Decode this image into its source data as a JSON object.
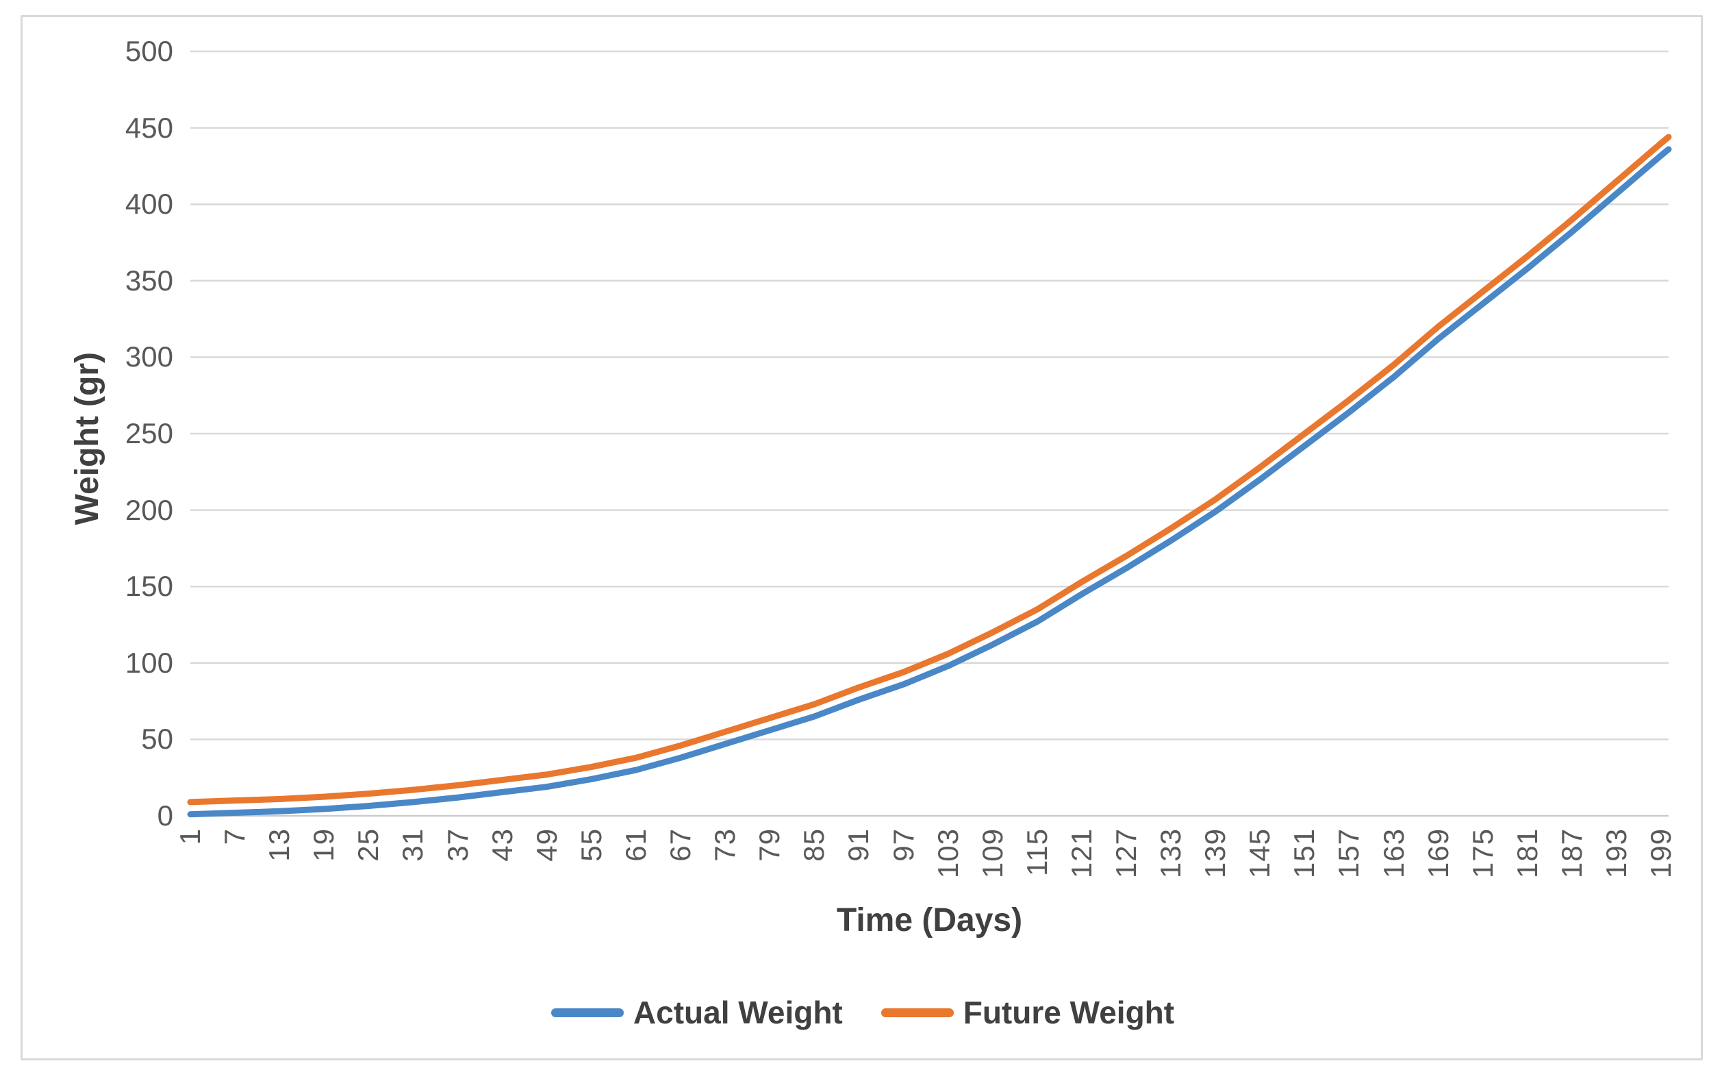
{
  "chart_data": {
    "type": "line",
    "xlabel": "Time (Days)",
    "ylabel": "Weight (gr)",
    "xlim": [
      1,
      200
    ],
    "ylim": [
      0,
      500
    ],
    "grid": "horizontal",
    "legend_position": "bottom",
    "x_tick_labels": [
      "1",
      "7",
      "13",
      "19",
      "25",
      "31",
      "37",
      "43",
      "49",
      "55",
      "61",
      "67",
      "73",
      "79",
      "85",
      "91",
      "97",
      "103",
      "109",
      "115",
      "121",
      "127",
      "133",
      "139",
      "145",
      "151",
      "157",
      "163",
      "169",
      "175",
      "181",
      "187",
      "193",
      "199"
    ],
    "y_ticks": [
      0,
      50,
      100,
      150,
      200,
      250,
      300,
      350,
      400,
      450,
      500
    ],
    "x": [
      1,
      7,
      13,
      19,
      25,
      31,
      37,
      43,
      49,
      55,
      61,
      67,
      73,
      79,
      85,
      91,
      97,
      103,
      109,
      115,
      121,
      127,
      133,
      139,
      145,
      151,
      157,
      163,
      169,
      175,
      181,
      187,
      193,
      199,
      200
    ],
    "series": [
      {
        "name": "Actual Weight",
        "color": "#4A87C7",
        "values": [
          1,
          2,
          3,
          4.5,
          6.5,
          9,
          12,
          15.5,
          19,
          24,
          30,
          38,
          47,
          56,
          65,
          76,
          86,
          98,
          112,
          127,
          145,
          162,
          180,
          199,
          220,
          242,
          264,
          287,
          312,
          335,
          358,
          382,
          407,
          432,
          436
        ]
      },
      {
        "name": "Future Weight",
        "color": "#E9772E",
        "values": [
          9,
          10,
          11,
          12.5,
          14.5,
          17,
          20,
          23.5,
          27,
          32,
          38,
          46,
          55,
          64,
          73,
          84,
          94,
          106,
          120,
          135,
          153,
          170,
          188,
          207,
          228,
          250,
          272,
          295,
          320,
          343,
          366,
          390,
          415,
          440,
          444
        ]
      }
    ]
  },
  "styles": {
    "tick_color": "#595959",
    "title_color": "#404040",
    "gridline_color": "#D9D9D9",
    "axis_line_color": "#C9CCCF",
    "frame_border_color": "#D9D9D9",
    "background": "#FFFFFF"
  }
}
